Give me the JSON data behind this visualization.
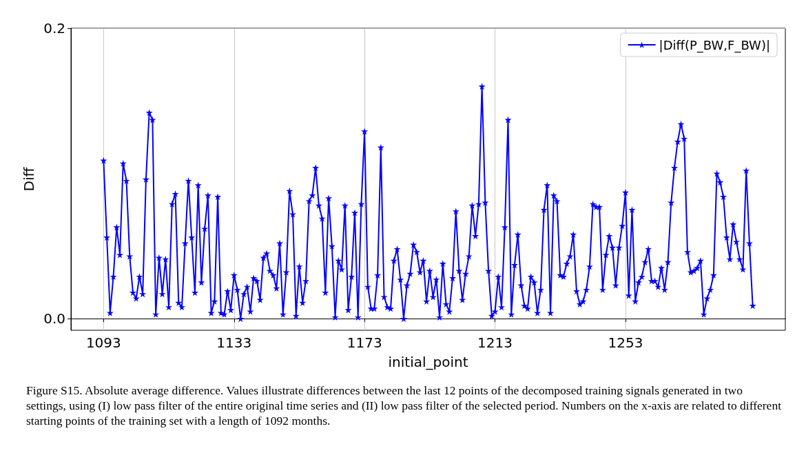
{
  "chart_data": {
    "type": "line",
    "xlabel": "initial_point",
    "ylabel": "Diff",
    "xlim": [
      1083,
      1302
    ],
    "xticks": [
      1093,
      1133,
      1173,
      1213,
      1253
    ],
    "ylim": [
      -0.008,
      0.2
    ],
    "yticks": [
      {
        "value": 0,
        "label": "0.0"
      },
      {
        "value": 0.2,
        "label": "0.2"
      }
    ],
    "grid": true,
    "legend": "top right",
    "marker": "star",
    "line_style": "solid",
    "annotations": [
      "Figure S15. Absolute average difference. Values illustrate differences between the last 12 points of the decomposed training signals generated in two settings, using (I) low pass filter of the entire original time series and (II) low pass filter of the selected period. Numbers on the x-axis are related to different starting points of the training set with a length of 1092 months."
    ],
    "x": [
      1093,
      1094,
      1095,
      1096,
      1097,
      1098,
      1099,
      1100,
      1101,
      1102,
      1103,
      1104,
      1105,
      1106,
      1107,
      1108,
      1109,
      1110,
      1111,
      1112,
      1113,
      1114,
      1115,
      1116,
      1117,
      1118,
      1119,
      1120,
      1121,
      1122,
      1123,
      1124,
      1125,
      1126,
      1127,
      1128,
      1129,
      1130,
      1131,
      1132,
      1133,
      1134,
      1135,
      1136,
      1137,
      1138,
      1139,
      1140,
      1141,
      1142,
      1143,
      1144,
      1145,
      1146,
      1147,
      1148,
      1149,
      1150,
      1151,
      1152,
      1153,
      1154,
      1155,
      1156,
      1157,
      1158,
      1159,
      1160,
      1161,
      1162,
      1163,
      1164,
      1165,
      1166,
      1167,
      1168,
      1169,
      1170,
      1171,
      1172,
      1173,
      1174,
      1175,
      1176,
      1177,
      1178,
      1179,
      1180,
      1181,
      1182,
      1183,
      1184,
      1185,
      1186,
      1187,
      1188,
      1189,
      1190,
      1191,
      1192,
      1193,
      1194,
      1195,
      1196,
      1197,
      1198,
      1199,
      1200,
      1201,
      1202,
      1203,
      1204,
      1205,
      1206,
      1207,
      1208,
      1209,
      1210,
      1211,
      1212,
      1213,
      1214,
      1215,
      1216,
      1217,
      1218,
      1219,
      1220,
      1221,
      1222,
      1223,
      1224,
      1225,
      1226,
      1227,
      1228,
      1229,
      1230,
      1231,
      1232,
      1233,
      1234,
      1235,
      1236,
      1237,
      1238,
      1239,
      1240,
      1241,
      1242,
      1243,
      1244,
      1245,
      1246,
      1247,
      1248,
      1249,
      1250,
      1251,
      1252,
      1253,
      1254,
      1255,
      1256,
      1257,
      1258,
      1259,
      1260,
      1261,
      1262,
      1263,
      1264,
      1265,
      1266,
      1267,
      1268,
      1269,
      1270,
      1271,
      1272,
      1273,
      1274,
      1275,
      1276,
      1277,
      1278,
      1279,
      1280,
      1281,
      1282,
      1283,
      1284,
      1285,
      1286,
      1287,
      1288,
      1289,
      1290,
      1291,
      1292
    ],
    "series": [
      {
        "name": "|Diff(P_BW,F_BW)|",
        "color": "#0000ff",
        "values": [
          0.109,
          0.056,
          0.004,
          0.029,
          0.063,
          0.044,
          0.107,
          0.095,
          0.043,
          0.018,
          0.014,
          0.029,
          0.017,
          0.096,
          0.142,
          0.137,
          0.003,
          0.042,
          0.017,
          0.041,
          0.008,
          0.079,
          0.086,
          0.011,
          0.008,
          0.052,
          0.095,
          0.056,
          0.018,
          0.092,
          0.025,
          0.062,
          0.085,
          0.004,
          0.012,
          0.084,
          0.004,
          0.003,
          0.019,
          0.006,
          0.03,
          0.02,
          0.0,
          0.017,
          0.022,
          0.005,
          0.028,
          0.026,
          0.013,
          0.042,
          0.045,
          0.033,
          0.03,
          0.021,
          0.052,
          0.003,
          0.032,
          0.088,
          0.072,
          0.002,
          0.036,
          0.011,
          0.026,
          0.081,
          0.085,
          0.104,
          0.078,
          0.069,
          0.018,
          0.083,
          0.05,
          0.001,
          0.04,
          0.034,
          0.078,
          0.006,
          0.029,
          0.073,
          0.001,
          0.079,
          0.129,
          0.022,
          0.007,
          0.007,
          0.03,
          0.118,
          0.015,
          0.008,
          0.007,
          0.04,
          0.048,
          0.027,
          0.0,
          0.023,
          0.031,
          0.051,
          0.046,
          0.032,
          0.04,
          0.012,
          0.033,
          0.015,
          0.027,
          0.001,
          0.038,
          0.01,
          0.005,
          0.028,
          0.074,
          0.033,
          0.013,
          0.031,
          0.043,
          0.078,
          0.057,
          0.079,
          0.16,
          0.08,
          0.033,
          0.002,
          0.005,
          0.029,
          0.008,
          0.063,
          0.137,
          0.003,
          0.037,
          0.058,
          0.023,
          0.009,
          0.007,
          0.029,
          0.025,
          0.004,
          0.02,
          0.075,
          0.092,
          0.004,
          0.085,
          0.081,
          0.03,
          0.029,
          0.038,
          0.043,
          0.058,
          0.019,
          0.01,
          0.012,
          0.02,
          0.036,
          0.079,
          0.077,
          0.077,
          0.02,
          0.044,
          0.057,
          0.049,
          0.023,
          0.049,
          0.064,
          0.087,
          0.016,
          0.075,
          0.012,
          0.025,
          0.029,
          0.039,
          0.048,
          0.026,
          0.026,
          0.022,
          0.035,
          0.02,
          0.039,
          0.08,
          0.104,
          0.122,
          0.134,
          0.124,
          0.046,
          0.032,
          0.033,
          0.035,
          0.04,
          0.003,
          0.014,
          0.02,
          0.03,
          0.1,
          0.094,
          0.084,
          0.056,
          0.041,
          0.065,
          0.053,
          0.041,
          0.034,
          0.102,
          0.052,
          0.009
        ]
      }
    ]
  }
}
